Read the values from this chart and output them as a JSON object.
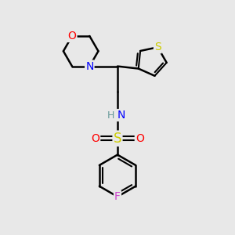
{
  "bg_color": "#e8e8e8",
  "bond_color": "#000000",
  "bond_width": 1.8,
  "atom_colors": {
    "O": "#ff0000",
    "N": "#0000ff",
    "S_thio": "#cccc00",
    "S_sulfonyl": "#cccc00",
    "F": "#cc44cc",
    "C": "#000000",
    "H": "#669999"
  },
  "font_size": 10,
  "fig_size": [
    3.0,
    3.0
  ],
  "dpi": 100
}
